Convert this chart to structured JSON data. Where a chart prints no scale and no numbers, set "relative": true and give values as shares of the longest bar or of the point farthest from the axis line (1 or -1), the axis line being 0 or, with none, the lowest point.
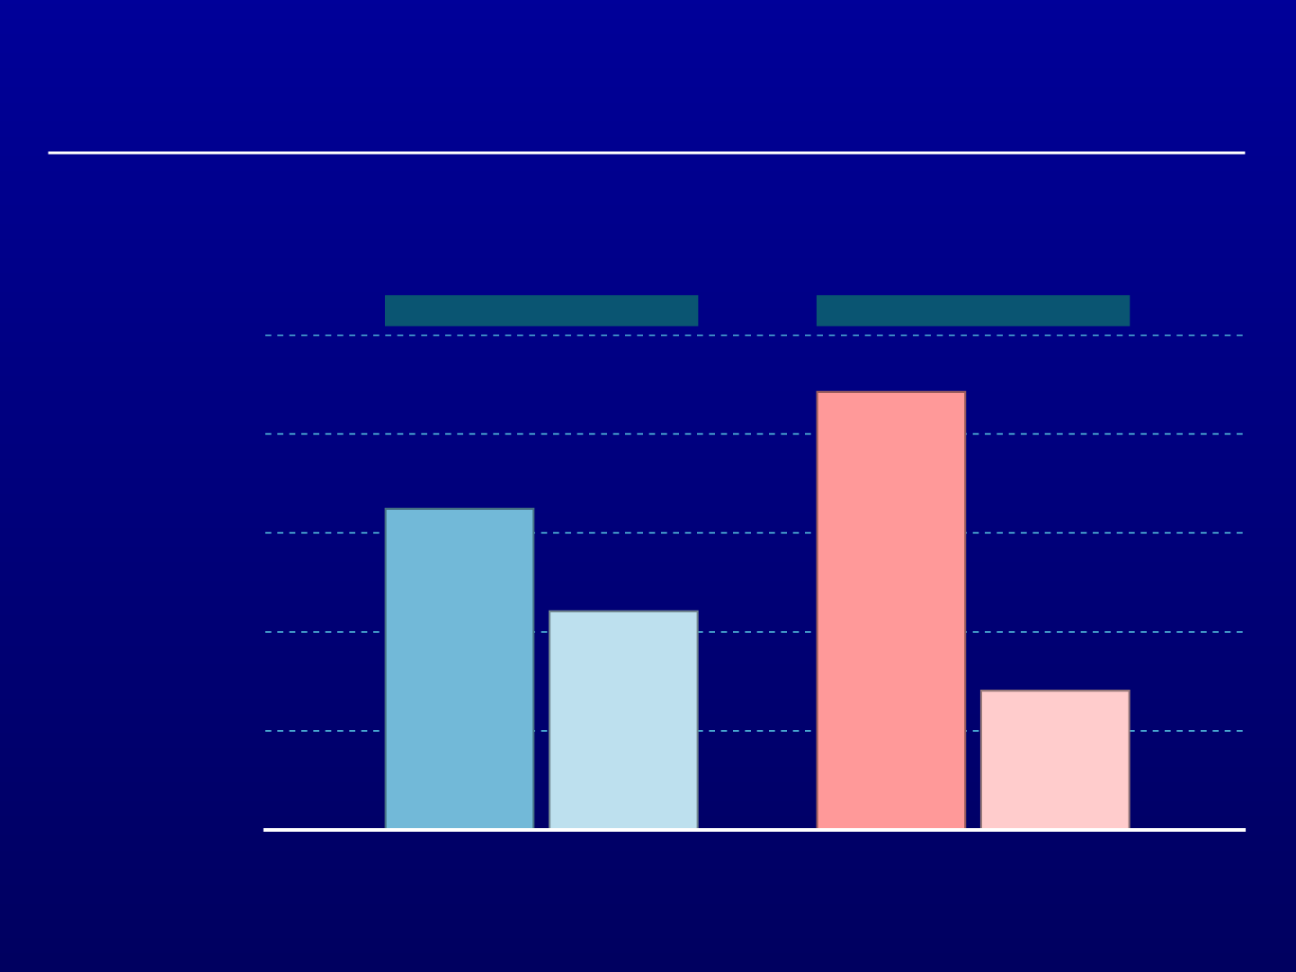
{
  "chart_data": {
    "type": "bar",
    "relative": true,
    "categories": [
      null,
      null
    ],
    "series": [
      {
        "colors": [
          "#72b9d8",
          "#ff9999"
        ],
        "values": [
          0.733,
          1
        ]
      },
      {
        "colors": [
          "#bde0ee",
          "#ffcccc"
        ],
        "values": [
          0.499,
          0.318
        ]
      }
    ],
    "ref_lines": [
      {
        "axis": "y",
        "value": 0.226,
        "color": "#4fb4d8",
        "line_style": "dashed"
      },
      {
        "axis": "y",
        "value": 0.452,
        "color": "#4fb4d8",
        "line_style": "dashed"
      },
      {
        "axis": "y",
        "value": 0.678,
        "color": "#4fb4d8",
        "line_style": "dashed"
      },
      {
        "axis": "y",
        "value": 0.904,
        "color": "#4fb4d8",
        "line_style": "dashed"
      },
      {
        "axis": "y",
        "value": 1.129,
        "color": "#4fb4d8",
        "line_style": "dashed"
      }
    ]
  }
}
